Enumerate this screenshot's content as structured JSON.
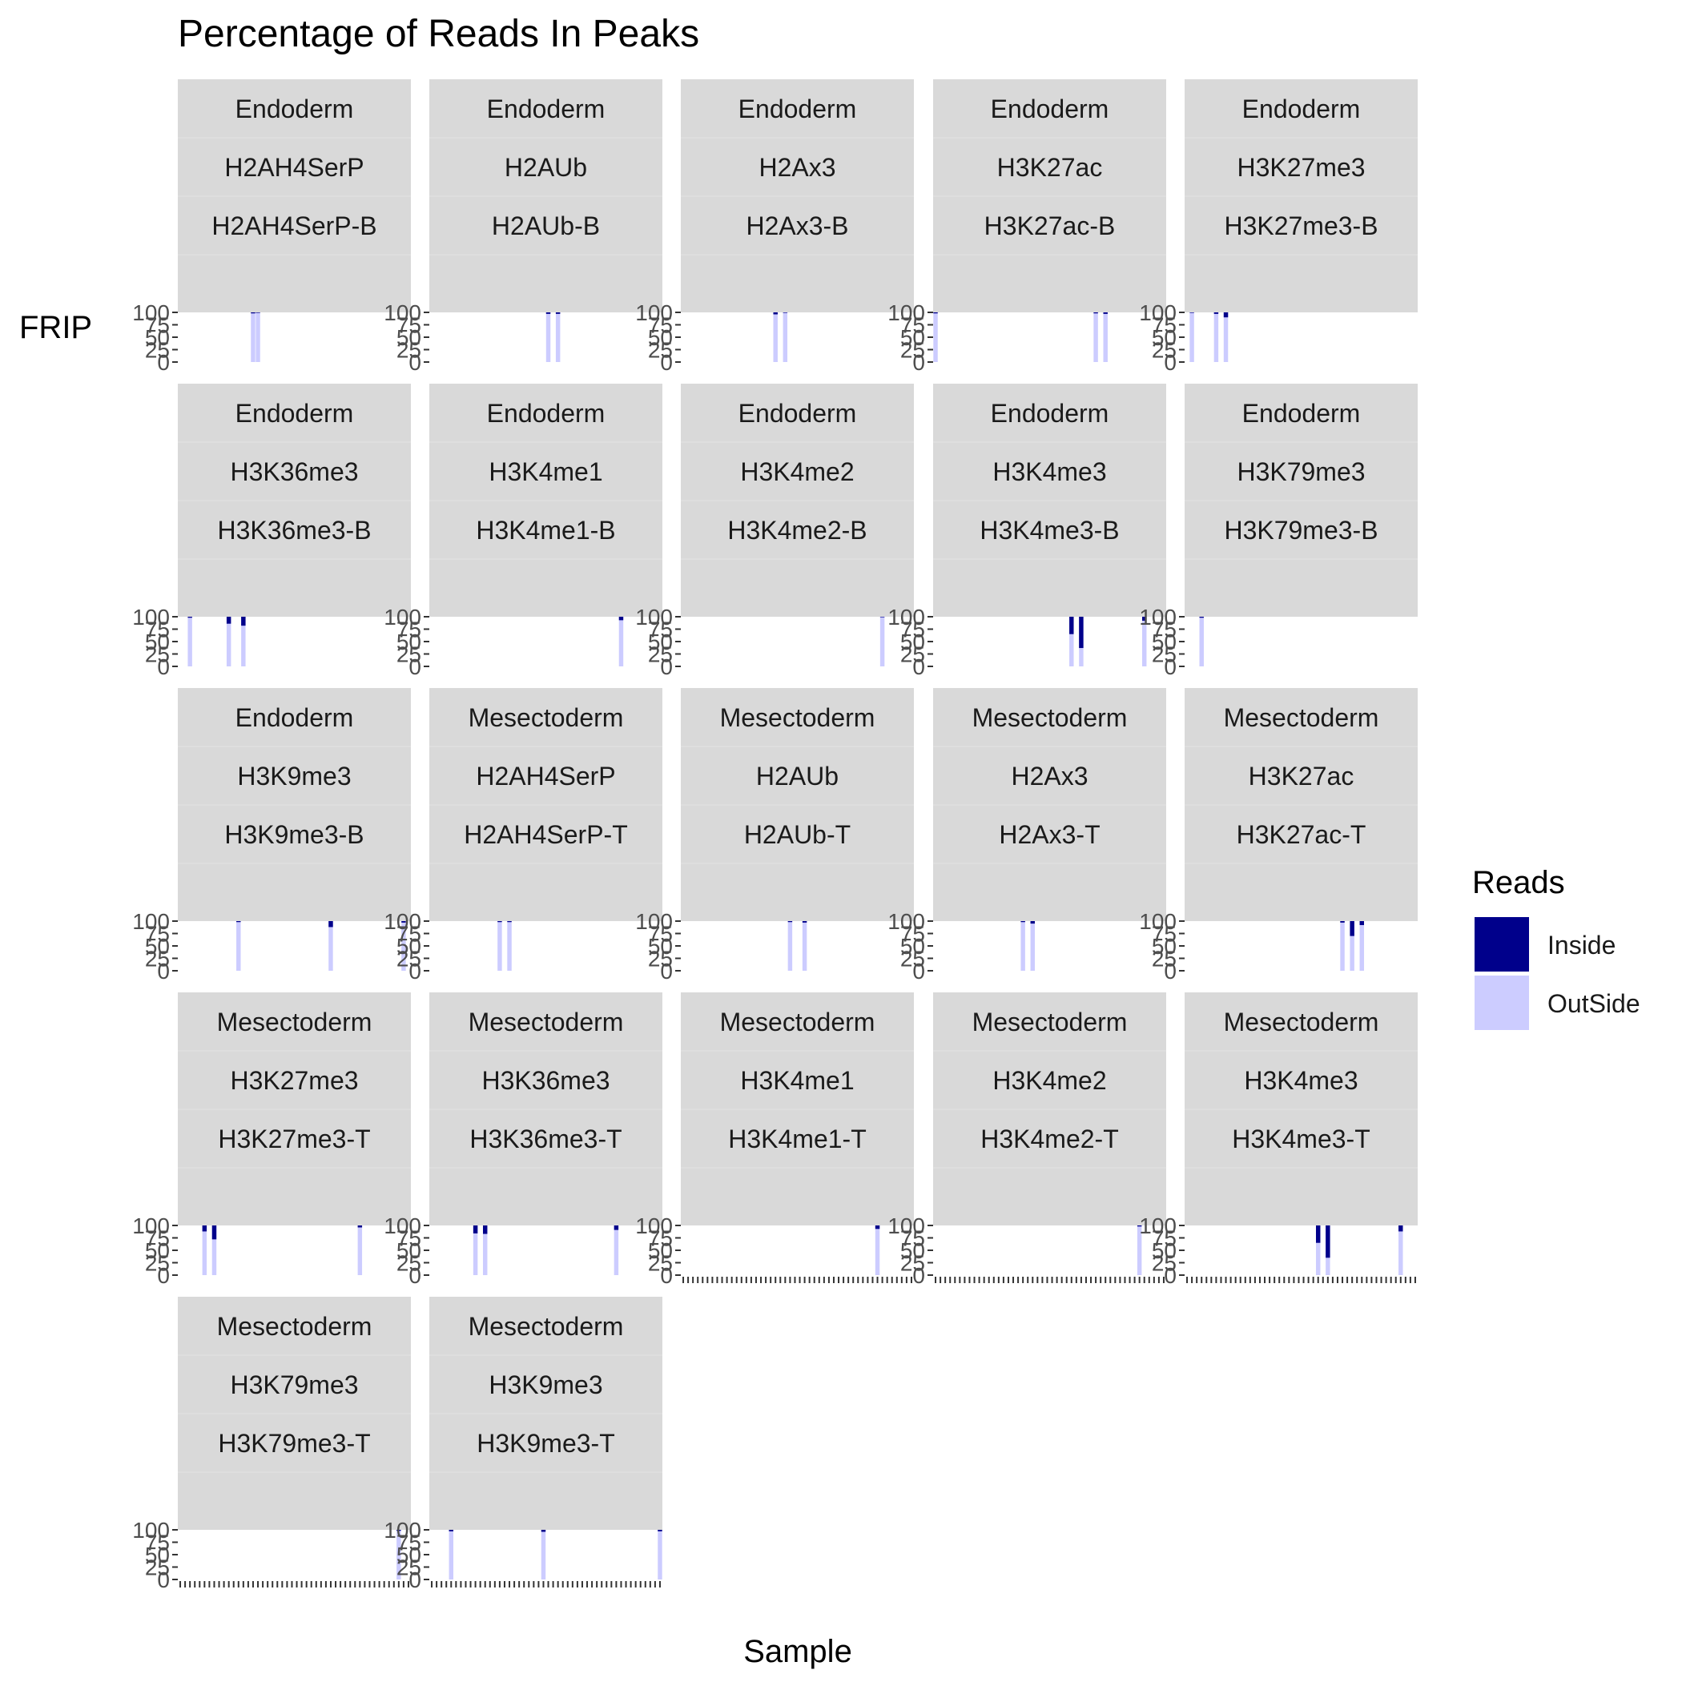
{
  "chart_data": {
    "type": "bar",
    "title": "Percentage of Reads In Peaks",
    "xlabel": "Sample",
    "ylabel": "FRIP",
    "ylim": [
      0,
      100
    ],
    "yticks": [
      "0",
      "25",
      "50",
      "75",
      "100"
    ],
    "stacked": true,
    "legend": {
      "title": "Reads",
      "position": "right",
      "entries": [
        {
          "name": "Inside",
          "color": "#00008B"
        },
        {
          "name": "OutSide",
          "color": "#CCCCFF"
        }
      ]
    },
    "colors": {
      "Inside": "#00008B",
      "OutSide": "#CCCCFF",
      "strip": "#D9D9D9"
    },
    "n_sample_slots": 48,
    "panels": [
      {
        "tissue": "Endoderm",
        "mark": "H2AH4SerP",
        "sample": "H2AH4SerP-B",
        "bars": [
          {
            "slot": 15,
            "inside": 2
          },
          {
            "slot": 16,
            "inside": 1
          }
        ]
      },
      {
        "tissue": "Endoderm",
        "mark": "H2AUb",
        "sample": "H2AUb-B",
        "bars": [
          {
            "slot": 24,
            "inside": 3
          },
          {
            "slot": 26,
            "inside": 3
          }
        ]
      },
      {
        "tissue": "Endoderm",
        "mark": "H2Ax3",
        "sample": "H2Ax3-B",
        "bars": [
          {
            "slot": 19,
            "inside": 4
          },
          {
            "slot": 21,
            "inside": 1
          }
        ]
      },
      {
        "tissue": "Endoderm",
        "mark": "H3K27ac",
        "sample": "H3K27ac-B",
        "bars": [
          {
            "slot": 0,
            "inside": 2
          },
          {
            "slot": 33,
            "inside": 2
          },
          {
            "slot": 35,
            "inside": 3
          }
        ]
      },
      {
        "tissue": "Endoderm",
        "mark": "H3K27me3",
        "sample": "H3K27me3-B",
        "bars": [
          {
            "slot": 1,
            "inside": 1
          },
          {
            "slot": 6,
            "inside": 3
          },
          {
            "slot": 8,
            "inside": 10
          }
        ]
      },
      {
        "tissue": "Endoderm",
        "mark": "H3K36me3",
        "sample": "H3K36me3-B",
        "bars": [
          {
            "slot": 2,
            "inside": 2
          },
          {
            "slot": 10,
            "inside": 14
          },
          {
            "slot": 13,
            "inside": 18
          }
        ]
      },
      {
        "tissue": "Endoderm",
        "mark": "H3K4me1",
        "sample": "H3K4me1-B",
        "bars": [
          {
            "slot": 39,
            "inside": 7
          }
        ]
      },
      {
        "tissue": "Endoderm",
        "mark": "H3K4me2",
        "sample": "H3K4me2-B",
        "bars": [
          {
            "slot": 41,
            "inside": 1
          }
        ]
      },
      {
        "tissue": "Endoderm",
        "mark": "H3K4me3",
        "sample": "H3K4me3-B",
        "bars": [
          {
            "slot": 28,
            "inside": 35
          },
          {
            "slot": 30,
            "inside": 63
          },
          {
            "slot": 43,
            "inside": 8
          }
        ]
      },
      {
        "tissue": "Endoderm",
        "mark": "H3K79me3",
        "sample": "H3K79me3-B",
        "bars": [
          {
            "slot": 3,
            "inside": 2
          }
        ]
      },
      {
        "tissue": "Endoderm",
        "mark": "H3K9me3",
        "sample": "H3K9me3-B",
        "bars": [
          {
            "slot": 12,
            "inside": 2
          },
          {
            "slot": 31,
            "inside": 12
          },
          {
            "slot": 46,
            "inside": 3
          }
        ]
      },
      {
        "tissue": "Mesectoderm",
        "mark": "H2AH4SerP",
        "sample": "H2AH4SerP-T",
        "bars": [
          {
            "slot": 14,
            "inside": 2
          },
          {
            "slot": 16,
            "inside": 2
          }
        ]
      },
      {
        "tissue": "Mesectoderm",
        "mark": "H2AUb",
        "sample": "H2AUb-T",
        "bars": [
          {
            "slot": 22,
            "inside": 2
          },
          {
            "slot": 25,
            "inside": 3
          }
        ]
      },
      {
        "tissue": "Mesectoderm",
        "mark": "H2Ax3",
        "sample": "H2Ax3-T",
        "bars": [
          {
            "slot": 18,
            "inside": 2
          },
          {
            "slot": 20,
            "inside": 5
          }
        ]
      },
      {
        "tissue": "Mesectoderm",
        "mark": "H3K27ac",
        "sample": "H3K27ac-T",
        "bars": [
          {
            "slot": 32,
            "inside": 3
          },
          {
            "slot": 34,
            "inside": 30
          },
          {
            "slot": 36,
            "inside": 8
          }
        ]
      },
      {
        "tissue": "Mesectoderm",
        "mark": "H3K27me3",
        "sample": "H3K27me3-T",
        "bars": [
          {
            "slot": 5,
            "inside": 12
          },
          {
            "slot": 7,
            "inside": 28
          },
          {
            "slot": 37,
            "inside": 4
          }
        ]
      },
      {
        "tissue": "Mesectoderm",
        "mark": "H3K36me3",
        "sample": "H3K36me3-T",
        "bars": [
          {
            "slot": 9,
            "inside": 16
          },
          {
            "slot": 11,
            "inside": 17
          },
          {
            "slot": 38,
            "inside": 9
          }
        ]
      },
      {
        "tissue": "Mesectoderm",
        "mark": "H3K4me1",
        "sample": "H3K4me1-T",
        "bars": [
          {
            "slot": 40,
            "inside": 7
          }
        ]
      },
      {
        "tissue": "Mesectoderm",
        "mark": "H3K4me2",
        "sample": "H3K4me2-T",
        "bars": [
          {
            "slot": 42,
            "inside": 2
          }
        ]
      },
      {
        "tissue": "Mesectoderm",
        "mark": "H3K4me3",
        "sample": "H3K4me3-T",
        "bars": [
          {
            "slot": 27,
            "inside": 35
          },
          {
            "slot": 29,
            "inside": 65
          },
          {
            "slot": 44,
            "inside": 12
          }
        ]
      },
      {
        "tissue": "Mesectoderm",
        "mark": "H3K79me3",
        "sample": "H3K79me3-T",
        "bars": [
          {
            "slot": 45,
            "inside": 2
          }
        ]
      },
      {
        "tissue": "Mesectoderm",
        "mark": "H3K9me3",
        "sample": "H3K9me3-T",
        "bars": [
          {
            "slot": 4,
            "inside": 3
          },
          {
            "slot": 23,
            "inside": 4
          },
          {
            "slot": 47,
            "inside": 3
          }
        ]
      }
    ]
  }
}
